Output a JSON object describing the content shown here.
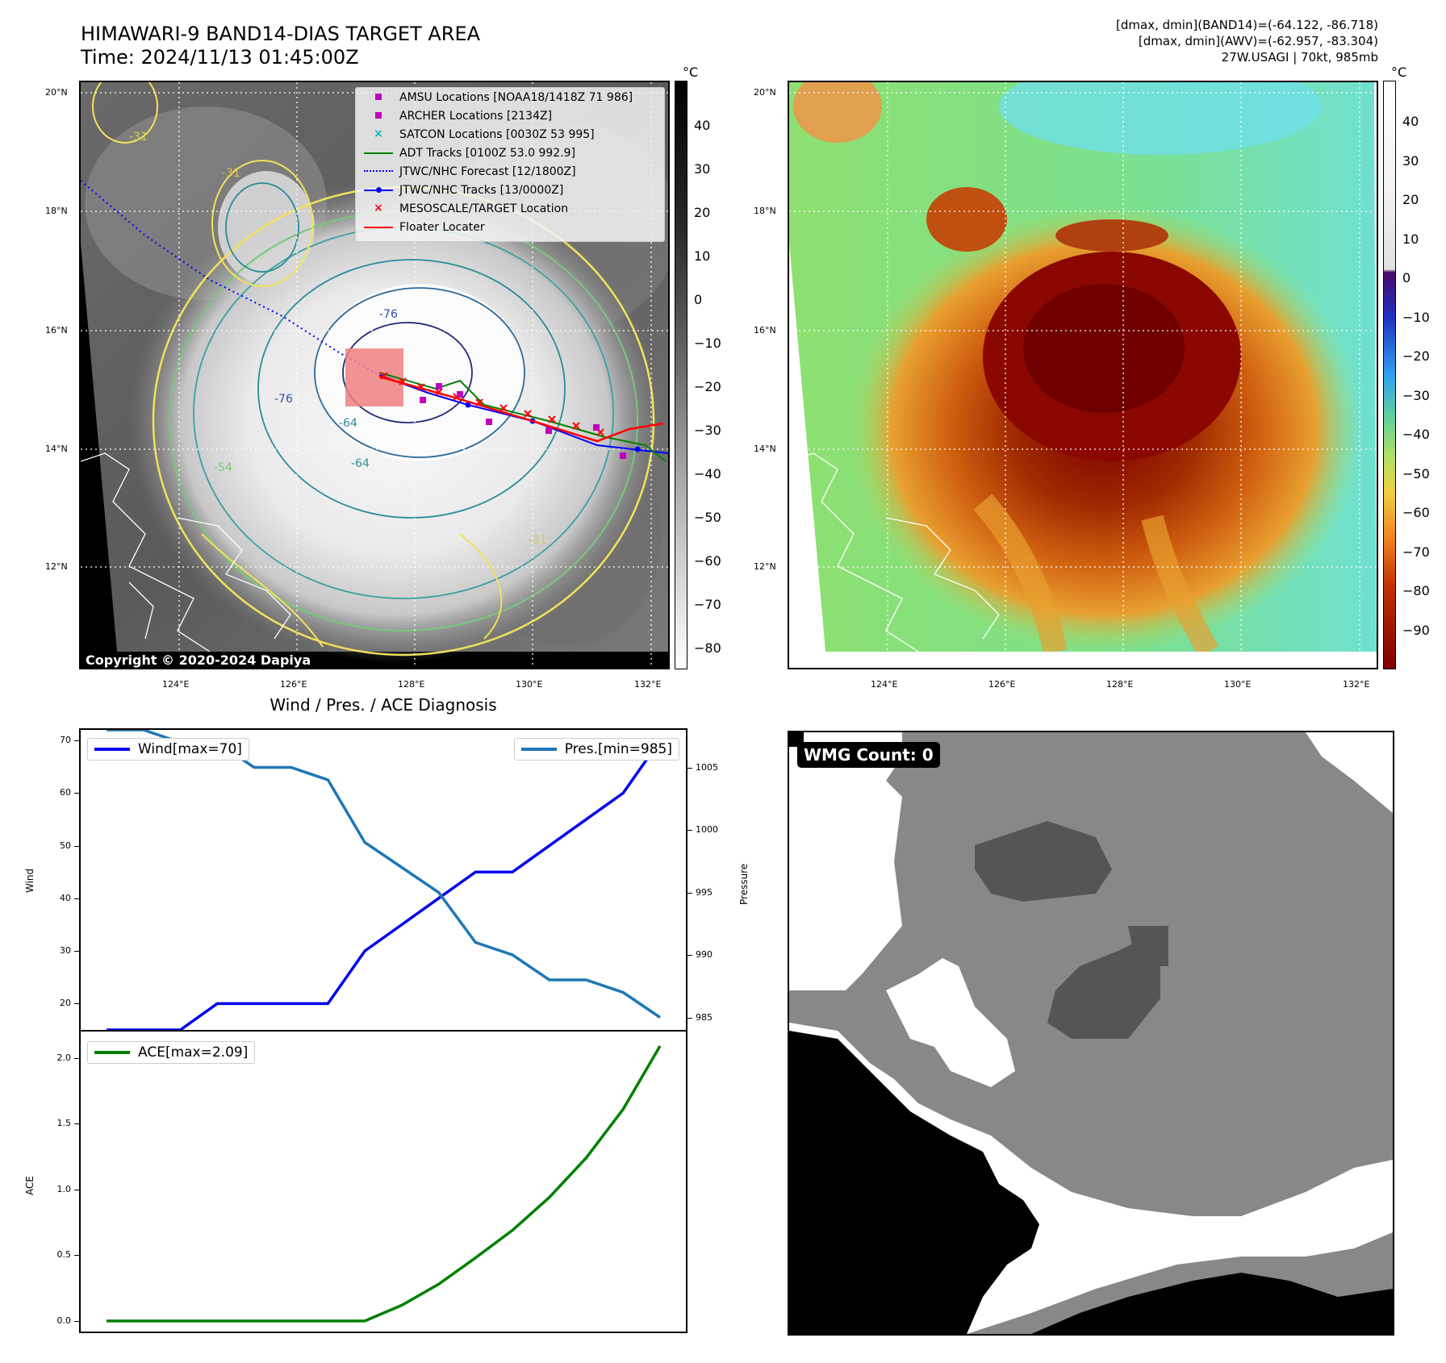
{
  "header": {
    "title_line1": "HIMAWARI-9 BAND14-DIAS TARGET AREA",
    "title_line2": "Time: 2024/11/13 01:45:00Z",
    "right_line1": "[dmax, dmin](BAND14)=(-64.122, -86.718)",
    "right_line2": "[dmax, dmin](AWV)=(-62.957, -83.304)",
    "right_line3": "27W.USAGI | 70kt, 985mb"
  },
  "map": {
    "lat_labels": [
      "20°N",
      "18°N",
      "16°N",
      "14°N",
      "12°N"
    ],
    "lon_labels": [
      "124°E",
      "126°E",
      "128°E",
      "130°E",
      "132°E"
    ],
    "copyright": "Copyright © 2020-2024 Dapiya",
    "contour_labels": [
      "-31",
      "-31",
      "-76",
      "-76",
      "-64",
      "-64",
      "-54",
      "-31"
    ]
  },
  "legend": {
    "items": [
      {
        "label": "AMSU Locations [NOAA18/1418Z 71 986]",
        "symbol": "square",
        "color": "#c000c0"
      },
      {
        "label": "ARCHER Locations [2134Z]",
        "symbol": "square",
        "color": "#c000c0"
      },
      {
        "label": "SATCON Locations [0030Z 53 995]",
        "symbol": "x",
        "color": "#00b8b8"
      },
      {
        "label": "ADT Tracks [0100Z 53.0 992.9]",
        "symbol": "line",
        "color": "#008000"
      },
      {
        "label": "JTWC/NHC Forecast [12/1800Z]",
        "symbol": "dotted",
        "color": "#0000ff"
      },
      {
        "label": "JTWC/NHC Tracks [13/0000Z]",
        "symbol": "line-dot",
        "color": "#0000ff"
      },
      {
        "label": "MESOSCALE/TARGET Location",
        "symbol": "x",
        "color": "#ff0000"
      },
      {
        "label": "Floater Locater",
        "symbol": "line",
        "color": "#ff0000"
      }
    ]
  },
  "colorbar_left": {
    "unit": "°C",
    "ticks": [
      "40",
      "30",
      "20",
      "10",
      "0",
      "−10",
      "−20",
      "−30",
      "−40",
      "−50",
      "−60",
      "−70",
      "−80"
    ]
  },
  "colorbar_right": {
    "unit": "°C",
    "ticks": [
      "40",
      "30",
      "20",
      "10",
      "0",
      "−10",
      "−20",
      "−30",
      "−40",
      "−50",
      "−60",
      "−70",
      "−80",
      "−90"
    ]
  },
  "wmg": {
    "label": "WMG Count: 0"
  },
  "chart_data": [
    {
      "type": "line",
      "title": "Wind / Pres. / ACE Diagnosis",
      "ylabel": "Wind",
      "ylabel_right": "Pressure",
      "ylim": [
        15,
        72
      ],
      "ylim_right": [
        984,
        1008
      ],
      "yticks": [
        20,
        30,
        40,
        50,
        60,
        70
      ],
      "yticks_right": [
        985,
        990,
        995,
        1000,
        1005
      ],
      "series": [
        {
          "name": "Wind[max=70]",
          "axis": "left",
          "color": "#0000ee",
          "values": [
            15,
            15,
            15,
            20,
            20,
            20,
            20,
            30,
            35,
            40,
            45,
            45,
            50,
            55,
            60,
            70
          ]
        },
        {
          "name": "Pres.[min=985]",
          "axis": "right",
          "color": "#1f77b4",
          "values": [
            1008,
            1008,
            1007,
            1007,
            1005,
            1005,
            1004,
            999,
            997,
            995,
            991,
            990,
            988,
            988,
            987,
            985
          ]
        }
      ]
    },
    {
      "type": "line",
      "ylabel": "ACE",
      "ylim": [
        -0.08,
        2.2
      ],
      "yticks": [
        "0.0",
        "0.5",
        "1.0",
        "1.5",
        "2.0"
      ],
      "series": [
        {
          "name": "ACE[max=2.09]",
          "color": "#008000",
          "values": [
            0,
            0,
            0,
            0,
            0,
            0,
            0,
            0,
            0.12,
            0.28,
            0.48,
            0.69,
            0.94,
            1.24,
            1.61,
            2.09
          ]
        }
      ]
    }
  ]
}
